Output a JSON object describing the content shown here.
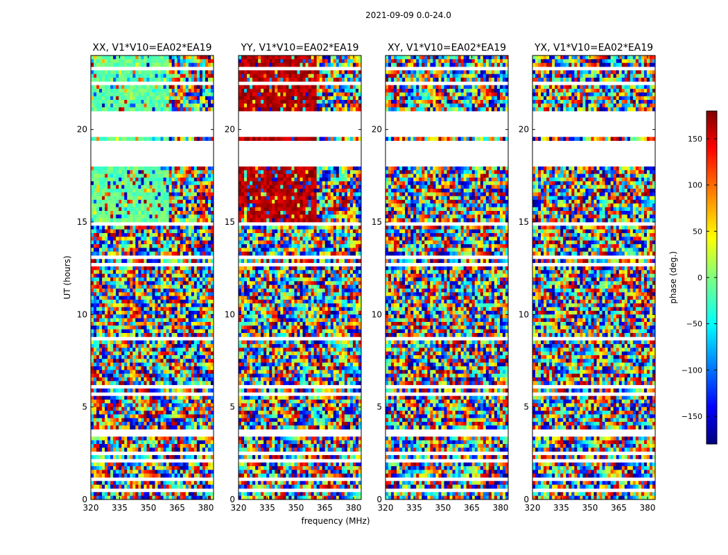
{
  "figure_title": "2021-09-09 0.0-24.0",
  "colors": {
    "frame": "#000000",
    "background": "#ffffff",
    "colormap": "jet"
  },
  "chart_data": {
    "type": "heatmap",
    "title": "2021-09-09 0.0-24.0",
    "xlabel": "frequency (MHz)",
    "ylabel": "UT (hours)",
    "xlim": [
      320,
      384
    ],
    "ylim": [
      0,
      24
    ],
    "xticks": [
      320,
      335,
      350,
      365,
      380
    ],
    "yticks": [
      0,
      5,
      10,
      15,
      20
    ],
    "grid": false,
    "panels": [
      {
        "name": "XX",
        "title": "XX, V1*V10=EA02*EA19",
        "dominant_phase_low_freq": -10,
        "transition_freq": 361
      },
      {
        "name": "YY",
        "title": "YY, V1*V10=EA02*EA19",
        "dominant_phase_low_freq": 160,
        "transition_freq": 361
      },
      {
        "name": "XY",
        "title": "XY, V1*V10=EA02*EA19",
        "dominant_phase_low_freq": null,
        "transition_freq": null
      },
      {
        "name": "YX",
        "title": "YX, V1*V10=EA02*EA19",
        "dominant_phase_low_freq": null,
        "transition_freq": null
      }
    ],
    "flagged_time_ranges": [
      [
        18.1,
        19.4
      ],
      [
        19.6,
        20.9
      ],
      [
        22.4,
        22.6
      ],
      [
        23.2,
        23.35
      ],
      [
        14.8,
        15.05
      ],
      [
        13.1,
        13.25
      ],
      [
        12.6,
        12.75
      ],
      [
        8.65,
        8.75
      ],
      [
        6.0,
        6.15
      ],
      [
        5.6,
        5.7
      ],
      [
        3.5,
        3.7
      ],
      [
        2.4,
        2.6
      ],
      [
        2.1,
        2.2
      ],
      [
        1.05,
        1.15
      ],
      [
        0.5,
        0.6
      ]
    ],
    "colorbar": {
      "label": "phase (deg.)",
      "range": [
        -180,
        180
      ],
      "ticks": [
        -150,
        -100,
        -50,
        0,
        50,
        100,
        150
      ],
      "tick_labels": [
        "−150",
        "−100",
        "−50",
        "0",
        "50",
        "100",
        "150"
      ]
    }
  }
}
